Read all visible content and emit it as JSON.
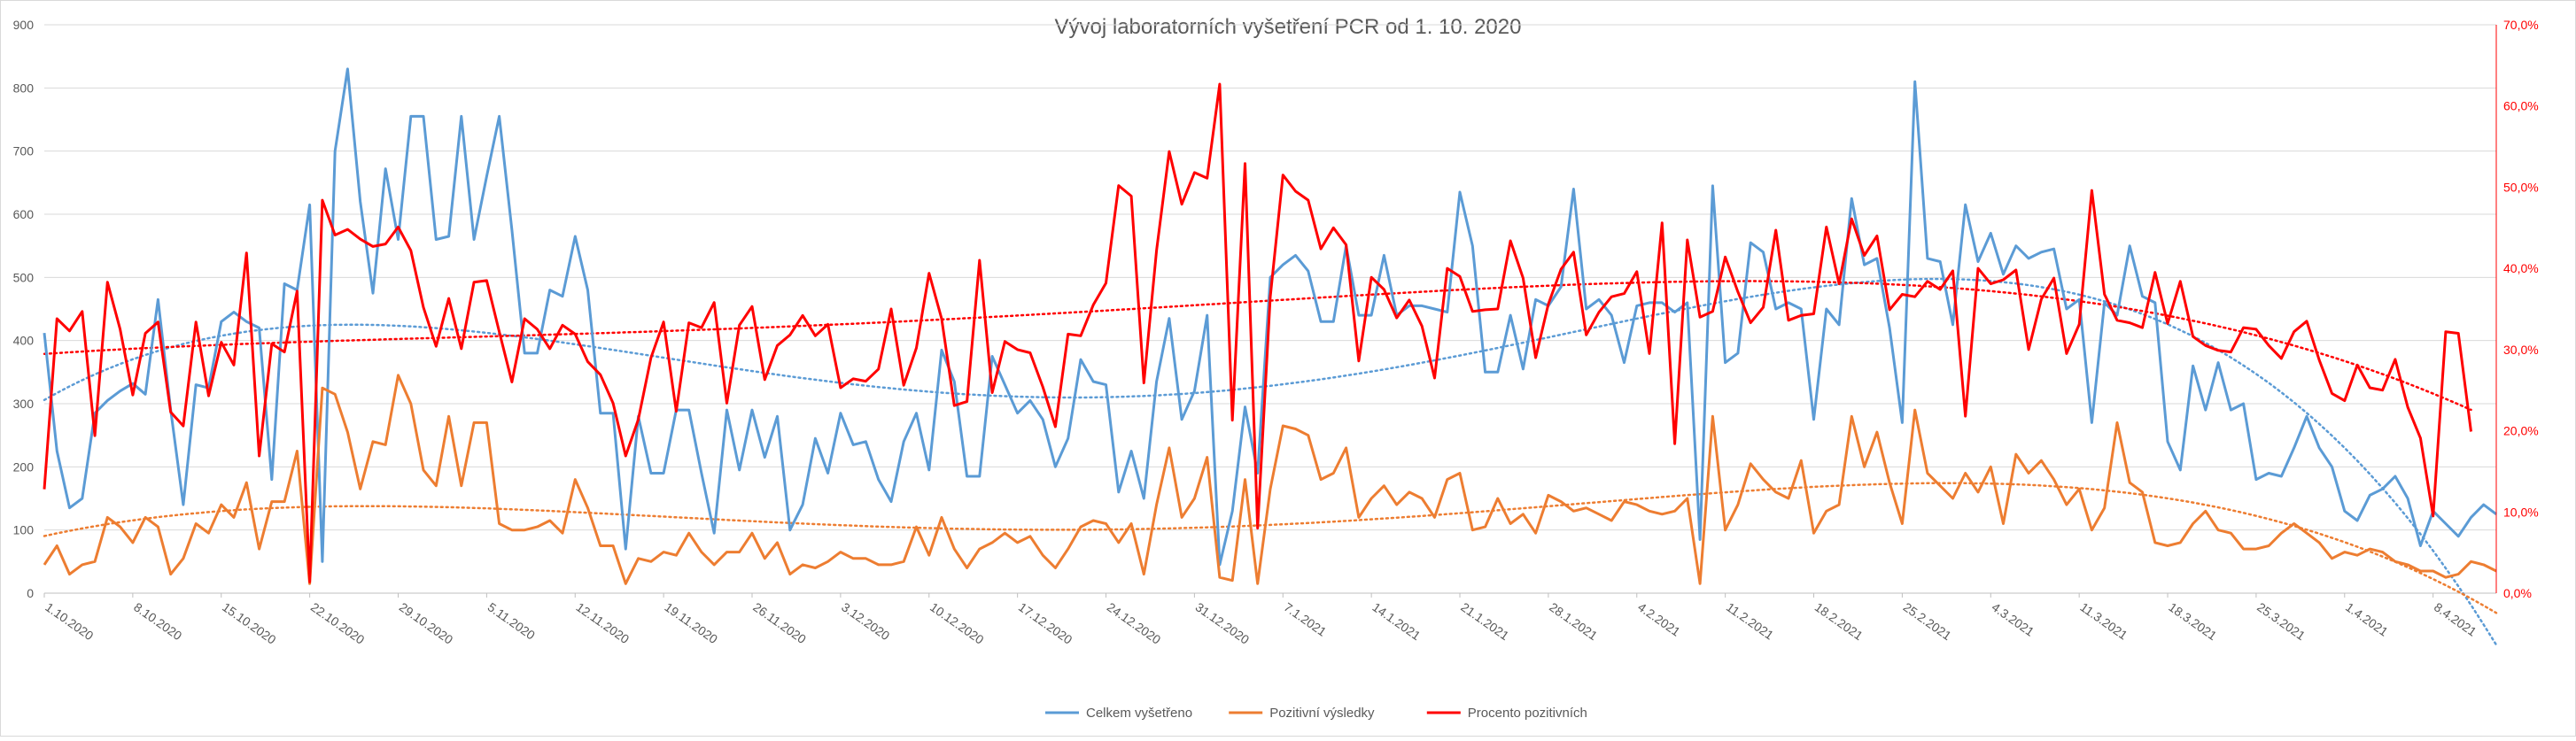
{
  "chart_data": {
    "type": "line",
    "title": "Vývoj laboratorních vyšetření PCR od 1. 10. 2020",
    "y_left": {
      "min": 0,
      "max": 900,
      "step": 100,
      "ticks": [
        "0",
        "100",
        "200",
        "300",
        "400",
        "500",
        "600",
        "700",
        "800",
        "900"
      ]
    },
    "y_right": {
      "min": 0,
      "max": 70,
      "step": 10,
      "unit": "%",
      "ticks": [
        "0,0%",
        "10,0%",
        "20,0%",
        "30,0%",
        "40,0%",
        "50,0%",
        "60,0%",
        "70,0%"
      ]
    },
    "x_tick_labels": [
      "1.10.2020",
      "8.10.2020",
      "15.10.2020",
      "22.10.2020",
      "29.10.2020",
      "5.11.2020",
      "12.11.2020",
      "19.11.2020",
      "26.11.2020",
      "3.12.2020",
      "10.12.2020",
      "17.12.2020",
      "24.12.2020",
      "31.12.2020",
      "7.1.2021",
      "14.1.2021",
      "21.1.2021",
      "28.1.2021",
      "4.2.2021",
      "11.2.2021",
      "18.2.2021",
      "25.2.2021",
      "4.3.2021",
      "11.3.2021",
      "18.3.2021",
      "25.3.2021",
      "1.4.2021",
      "8.4.2021"
    ],
    "grid": true,
    "legend_position": "bottom",
    "series": [
      {
        "name": "Celkem vyšetřeno",
        "axis": "left",
        "color": "#5B9BD5",
        "trendline": "polynomial",
        "values": [
          412,
          225,
          135,
          150,
          285,
          305,
          320,
          332,
          315,
          465,
          290,
          140,
          330,
          325,
          430,
          445,
          430,
          420,
          180,
          490,
          480,
          615,
          50,
          700,
          830,
          620,
          475,
          672,
          560,
          755,
          755,
          560,
          565,
          755,
          560,
          660,
          755,
          575,
          380,
          380,
          480,
          470,
          565,
          480,
          285,
          285,
          70,
          280,
          190,
          190,
          290,
          290,
          190,
          95,
          290,
          195,
          290,
          215,
          280,
          100,
          140,
          245,
          190,
          285,
          235,
          240,
          180,
          145,
          240,
          285,
          195,
          385,
          335,
          185,
          185,
          375,
          330,
          285,
          305,
          275,
          200,
          245,
          370,
          335,
          330,
          160,
          225,
          150,
          335,
          435,
          275,
          320,
          440,
          45,
          130,
          295,
          190,
          500,
          520,
          535,
          510,
          430,
          430,
          550,
          440,
          440,
          535,
          440,
          455,
          455,
          450,
          445,
          635,
          550,
          350,
          350,
          440,
          355,
          465,
          455,
          485,
          640,
          450,
          465,
          440,
          365,
          455,
          460,
          460,
          445,
          460,
          85,
          645,
          365,
          380,
          555,
          540,
          450,
          460,
          450,
          275,
          450,
          425,
          625,
          520,
          530,
          420,
          270,
          810,
          530,
          525,
          425,
          615,
          525,
          570,
          505,
          550,
          530,
          540,
          545,
          450,
          465,
          270,
          460,
          440,
          550,
          470,
          460,
          240,
          195,
          360,
          290,
          365,
          290,
          300,
          180,
          190,
          185,
          230,
          280,
          230,
          200,
          130,
          115,
          155,
          165,
          185,
          150,
          75,
          130,
          110,
          90,
          120,
          140,
          125
        ]
      },
      {
        "name": "Pozitivní výsledky",
        "axis": "left",
        "color": "#ED7D31",
        "trendline": "polynomial",
        "values": [
          45,
          75,
          30,
          45,
          50,
          120,
          105,
          80,
          120,
          105,
          30,
          55,
          110,
          95,
          140,
          120,
          175,
          70,
          145,
          145,
          225,
          15,
          325,
          315,
          255,
          165,
          240,
          235,
          345,
          300,
          195,
          170,
          280,
          170,
          270,
          270,
          110,
          100,
          100,
          105,
          115,
          95,
          180,
          135,
          75,
          75,
          15,
          55,
          50,
          65,
          60,
          95,
          65,
          45,
          65,
          65,
          95,
          55,
          80,
          30,
          45,
          40,
          50,
          65,
          55,
          55,
          45,
          45,
          50,
          105,
          60,
          120,
          70,
          40,
          70,
          80,
          95,
          80,
          90,
          60,
          40,
          70,
          105,
          115,
          110,
          80,
          110,
          30,
          140,
          230,
          120,
          150,
          215,
          25,
          20,
          180,
          15,
          165,
          265,
          260,
          250,
          180,
          190,
          230,
          120,
          150,
          170,
          140,
          160,
          150,
          120,
          180,
          190,
          100,
          105,
          150,
          110,
          125,
          95,
          155,
          145,
          130,
          135,
          125,
          115,
          145,
          140,
          130,
          125,
          130,
          150,
          15,
          280,
          100,
          140,
          205,
          180,
          160,
          150,
          210,
          95,
          130,
          140,
          280,
          200,
          255,
          175,
          110,
          290,
          190,
          170,
          150,
          190,
          160,
          200,
          110,
          220,
          190,
          210,
          180,
          140,
          165,
          100,
          135,
          270,
          175,
          160,
          80,
          75,
          80,
          110,
          130,
          100,
          95,
          70,
          70,
          75,
          95,
          110,
          95,
          80,
          55,
          65,
          60,
          70,
          65,
          50,
          45,
          35,
          35,
          25,
          30,
          50,
          45,
          35
        ]
      },
      {
        "name": "Procento pozitivních",
        "axis": "right",
        "color": "#FF0000",
        "trendline": "polynomial",
        "values": [
          12.8,
          33.8,
          32.3,
          34.7,
          19.4,
          38.3,
          32.5,
          24.4,
          32.0,
          33.4,
          22.3,
          20.6,
          33.4,
          24.3,
          30.9,
          28.1,
          41.9,
          16.9,
          30.7,
          29.7,
          37.2,
          1.4,
          48.4,
          44.1,
          44.8,
          43.6,
          42.7,
          43.0,
          45.1,
          42.2,
          35.2,
          30.4,
          36.3,
          30.1,
          38.3,
          38.5,
          32.2,
          26.0,
          33.8,
          32.5,
          30.1,
          33.0,
          31.9,
          28.5,
          26.9,
          23.4,
          16.9,
          21.4,
          29.0,
          33.4,
          22.4,
          33.3,
          32.7,
          35.8,
          23.4,
          33.0,
          35.3,
          26.3,
          30.5,
          31.8,
          34.2,
          31.7,
          33.1,
          25.3,
          26.4,
          26.1,
          27.6,
          35.0,
          25.6,
          30.2,
          39.4,
          33.8,
          23.1,
          23.6,
          41.0,
          24.7,
          31.0,
          30.0,
          29.6,
          25.4,
          20.5,
          31.9,
          31.7,
          35.5,
          38.2,
          50.2,
          48.9,
          25.9,
          42.2,
          54.4,
          47.9,
          51.8,
          51.1,
          62.7,
          21.3,
          52.9,
          8.0,
          36.5,
          51.5,
          49.5,
          48.4,
          42.4,
          45.0,
          42.9,
          28.6,
          38.9,
          37.4,
          33.9,
          36.1,
          32.9,
          26.5,
          40.0,
          39.0,
          34.7,
          34.9,
          35.0,
          43.4,
          38.8,
          29.0,
          35.6,
          39.9,
          42.0,
          31.8,
          34.6,
          36.5,
          36.9,
          39.6,
          29.5,
          45.6,
          18.4,
          43.5,
          34.0,
          34.7,
          41.4,
          37.1,
          33.3,
          35.2,
          44.7,
          33.6,
          34.2,
          34.4,
          45.1,
          38.1,
          46.1,
          41.6,
          44.0,
          34.9,
          36.8,
          36.5,
          38.4,
          37.4,
          39.7,
          21.8,
          40.0,
          38.1,
          38.6,
          39.8,
          30.0,
          36.2,
          38.8,
          29.5,
          33.1,
          49.6,
          36.8,
          33.6,
          33.3,
          32.7,
          39.5,
          33.2,
          38.4,
          31.6,
          30.5,
          29.9,
          29.7,
          32.7,
          32.5,
          30.5,
          28.9,
          32.2,
          33.5,
          28.7,
          24.6,
          23.7,
          28.1,
          25.3,
          25.0,
          28.8,
          22.9,
          19.1,
          9.5,
          32.2,
          32.0,
          19.9
        ]
      }
    ]
  }
}
